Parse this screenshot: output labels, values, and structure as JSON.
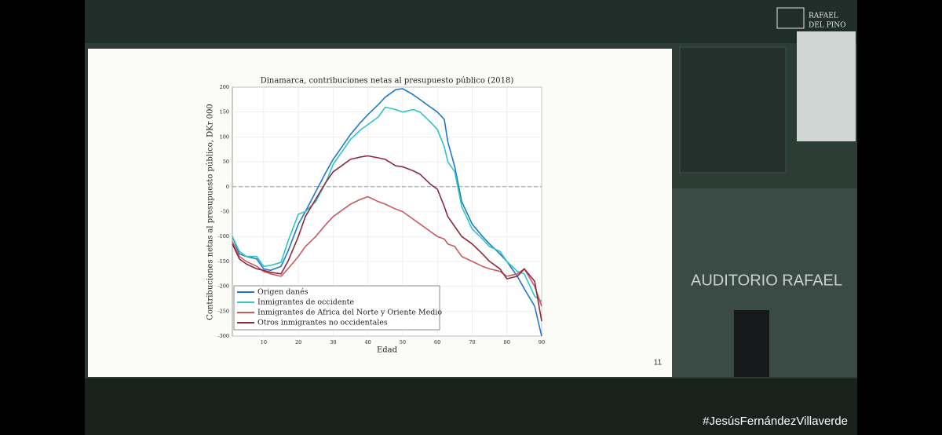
{
  "chart_data": {
    "type": "line",
    "title": "Dinamarca, contribuciones netas al presupuesto público (2018)",
    "x_label": "Edad",
    "y_label": "Contribuciones netas al presupuesto público, DKr 000",
    "x": [
      1,
      3,
      5,
      8,
      10,
      12,
      15,
      17,
      20,
      22,
      25,
      28,
      30,
      33,
      35,
      38,
      40,
      43,
      45,
      48,
      50,
      53,
      55,
      58,
      60,
      62,
      63,
      65,
      67,
      70,
      73,
      75,
      78,
      80,
      83,
      85,
      88,
      90
    ],
    "series": [
      {
        "name": "Origen danés",
        "color": "#1f78c8",
        "values": [
          -100,
          -135,
          -140,
          -145,
          -165,
          -168,
          -160,
          -130,
          -75,
          -50,
          -10,
          30,
          55,
          85,
          105,
          130,
          145,
          165,
          180,
          195,
          197,
          185,
          175,
          160,
          150,
          135,
          90,
          40,
          -30,
          -75,
          -100,
          -115,
          -135,
          -150,
          -180,
          -205,
          -240,
          -300
        ]
      },
      {
        "name": "Inmigrantes de occidente",
        "color": "#2ec4c0",
        "values": [
          -100,
          -130,
          -140,
          -140,
          -160,
          -158,
          -152,
          -110,
          -55,
          -50,
          -30,
          10,
          45,
          75,
          95,
          115,
          125,
          140,
          160,
          155,
          150,
          155,
          150,
          130,
          115,
          80,
          50,
          30,
          -40,
          -85,
          -105,
          -120,
          -130,
          -150,
          -170,
          -175,
          -220,
          -230
        ]
      },
      {
        "name": "Inmigrantes de Africa del Norte y Oriente Medio",
        "color": "#c85a5e",
        "values": [
          -110,
          -140,
          -150,
          -160,
          -170,
          -175,
          -180,
          -165,
          -140,
          -120,
          -100,
          -75,
          -60,
          -45,
          -35,
          -25,
          -20,
          -30,
          -35,
          -45,
          -50,
          -65,
          -75,
          -90,
          -100,
          -105,
          -115,
          -120,
          -140,
          -150,
          -160,
          -165,
          -170,
          -180,
          -175,
          -165,
          -200,
          -240
        ]
      },
      {
        "name": "Otros inmigrantes no occidentales",
        "color": "#8b2a3c",
        "values": [
          -115,
          -145,
          -155,
          -165,
          -168,
          -172,
          -175,
          -150,
          -100,
          -60,
          -25,
          10,
          30,
          45,
          55,
          60,
          62,
          58,
          55,
          42,
          40,
          32,
          25,
          5,
          -5,
          -40,
          -60,
          -80,
          -100,
          -115,
          -135,
          -150,
          -165,
          -185,
          -180,
          -165,
          -190,
          -270
        ]
      }
    ],
    "xlim": [
      1,
      90
    ],
    "xticks": [
      10,
      20,
      30,
      40,
      50,
      60,
      70,
      80,
      90
    ],
    "ylim": [
      -300,
      200
    ],
    "yticks": [
      -300,
      -250,
      -200,
      -150,
      -100,
      -50,
      0,
      50,
      100,
      150,
      200
    ],
    "reference_line": 0,
    "grid": true,
    "legend": "lower left"
  },
  "slide_number": "11",
  "logo": {
    "line1": "RAFAEL",
    "line2": "DEL PINO"
  },
  "venue_sign": "AUDITORIO RAFAEL",
  "hashtag": "#JesúsFernándezVillaverde"
}
